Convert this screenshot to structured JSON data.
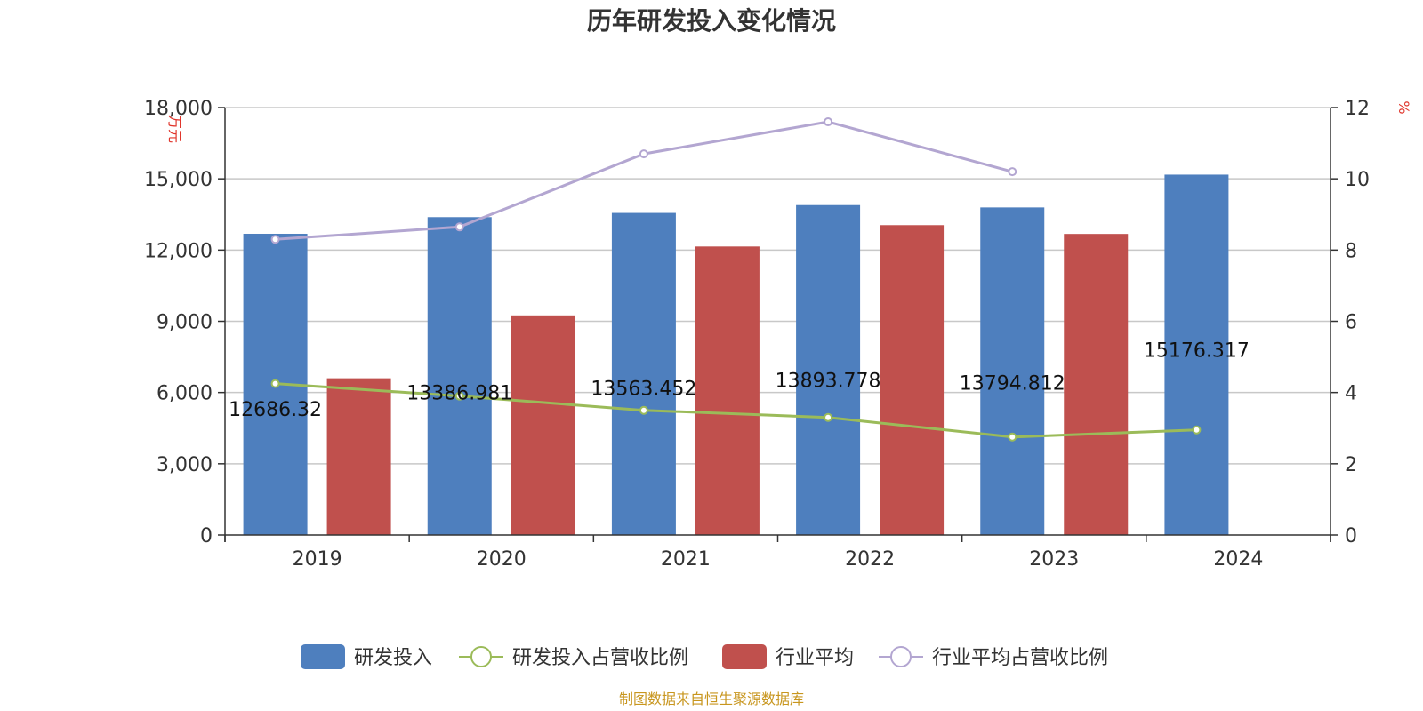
{
  "chart_data": {
    "type": "bar",
    "title": "历年研发投入变化情况",
    "categories": [
      "2019",
      "2020",
      "2021",
      "2022",
      "2023",
      "2024"
    ],
    "y_left": {
      "unit": "万元",
      "min": 0,
      "max": 18000,
      "ticks": [
        "0",
        "3,000",
        "6,000",
        "9,000",
        "12,000",
        "15,000",
        "18,000"
      ]
    },
    "y_right": {
      "unit": "%",
      "min": 0,
      "max": 12,
      "ticks": [
        "0",
        "2",
        "4",
        "6",
        "8",
        "10",
        "12"
      ]
    },
    "series": [
      {
        "name": "研发投入",
        "type": "bar",
        "axis": "left",
        "color": "#4e7fbe",
        "values": [
          12686.32,
          13386.981,
          13563.452,
          13893.778,
          13794.812,
          15176.317
        ],
        "labels": [
          "12686.32",
          "13386.981",
          "13563.452",
          "13893.778",
          "13794.812",
          "15176.317"
        ]
      },
      {
        "name": "研发投入占营收比例",
        "type": "line",
        "axis": "right",
        "color": "#9bbb59",
        "values": [
          4.25,
          3.9,
          3.5,
          3.3,
          2.75,
          2.95
        ]
      },
      {
        "name": "行业平均",
        "type": "bar",
        "axis": "left",
        "color": "#c0504d",
        "values": [
          6600,
          9250,
          12150,
          13050,
          12680,
          null
        ]
      },
      {
        "name": "行业平均占营收比例",
        "type": "line",
        "axis": "right",
        "color": "#b3a6d1",
        "values": [
          8.3,
          8.65,
          10.7,
          11.6,
          10.2,
          null
        ]
      }
    ],
    "grid": true,
    "legend": "bottom"
  },
  "source": "制图数据来自恒生聚源数据库"
}
